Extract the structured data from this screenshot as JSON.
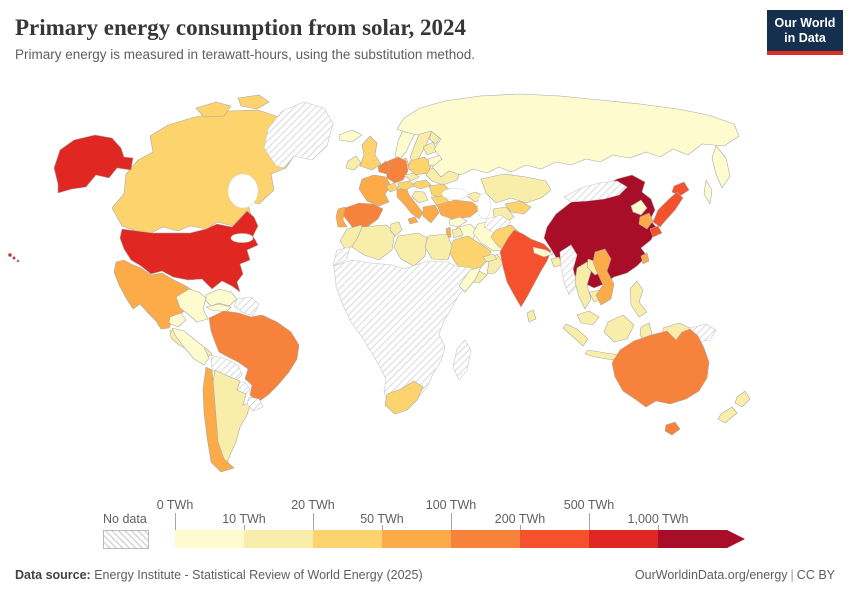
{
  "header": {
    "title": "Primary energy consumption from solar, 2024",
    "subtitle": "Primary energy is measured in terawatt-hours, using the substitution method."
  },
  "logo": {
    "line1": "Our World",
    "line2": "in Data",
    "bg_color": "#15304f",
    "accent_color": "#dc2e22"
  },
  "legend": {
    "no_data_label": "No data",
    "ticks": [
      {
        "label": "0 TWh",
        "row": "top"
      },
      {
        "label": "10 TWh",
        "row": "bottom"
      },
      {
        "label": "20 TWh",
        "row": "top"
      },
      {
        "label": "50 TWh",
        "row": "bottom"
      },
      {
        "label": "100 TWh",
        "row": "top"
      },
      {
        "label": "200 TWh",
        "row": "bottom"
      },
      {
        "label": "500 TWh",
        "row": "top"
      },
      {
        "label": "1,000 TWh",
        "row": "bottom"
      }
    ]
  },
  "footer": {
    "source_label": "Data source:",
    "source_text": "Energy Institute - Statistical Review of World Energy (2025)",
    "link": "OurWorldinData.org/energy",
    "separator": "|",
    "license": "CC BY"
  },
  "chart_data": {
    "type": "heatmap",
    "subtype": "choropleth-world-map",
    "title": "Primary energy consumption from solar, 2024",
    "unit": "TWh",
    "legend_position": "bottom",
    "bins": [
      {
        "label": "0–10 TWh",
        "color": "#fefbce"
      },
      {
        "label": "10–20 TWh",
        "color": "#f9edaa"
      },
      {
        "label": "20–50 TWh",
        "color": "#fcd36d"
      },
      {
        "label": "50–100 TWh",
        "color": "#fcab48"
      },
      {
        "label": "100–200 TWh",
        "color": "#f7823b"
      },
      {
        "label": "200–500 TWh",
        "color": "#f4512c"
      },
      {
        "label": "500–1,000 TWh",
        "color": "#e02721"
      },
      {
        "label": "1,000+ TWh",
        "color": "#a80e27"
      }
    ],
    "no_data_color": "hatched",
    "countries": {
      "China": "1,000+ TWh",
      "United States": "500–1,000 TWh",
      "India": "200–500 TWh",
      "Japan": "200–500 TWh",
      "Brazil": "100–200 TWh",
      "Australia": "100–200 TWh",
      "Germany": "100–200 TWh",
      "Spain": "100–200 TWh",
      "Netherlands": "100–200 TWh",
      "France": "50–100 TWh",
      "Italy": "50–100 TWh",
      "Turkey": "50–100 TWh",
      "Greece": "50–100 TWh",
      "Mexico": "50–100 TWh",
      "Chile": "50–100 TWh",
      "South Korea": "50–100 TWh",
      "Vietnam": "50–100 TWh",
      "Taiwan": "50–100 TWh",
      "Portugal": "50–100 TWh",
      "Israel": "50–100 TWh",
      "United Kingdom": "20–50 TWh",
      "Canada": "20–50 TWh",
      "Poland": "20–50 TWh",
      "Saudi Arabia": "20–50 TWh",
      "South Africa": "20–50 TWh",
      "Pakistan": "20–50 TWh",
      "Uzbekistan": "20–50 TWh",
      "Austria": "20–50 TWh",
      "Switzerland": "20–50 TWh",
      "Denmark": "20–50 TWh",
      "Hungary": "20–50 TWh",
      "Romania": "20–50 TWh",
      "Bulgaria": "20–50 TWh",
      "Sweden": "10–20 TWh",
      "Finland": "10–20 TWh",
      "Ireland": "10–20 TWh",
      "Ukraine": "10–20 TWh",
      "Czechia": "10–20 TWh",
      "Baltic states": "10–20 TWh",
      "Kazakhstan": "10–20 TWh",
      "Turkmenistan": "10–20 TWh",
      "Azerbaijan": "10–20 TWh",
      "Balkans": "10–20 TWh",
      "Egypt": "10–20 TWh",
      "Algeria": "10–20 TWh",
      "Libya": "10–20 TWh",
      "Morocco": "10–20 TWh",
      "Tunisia": "10–20 TWh",
      "Jordan": "10–20 TWh",
      "Oman": "10–20 TWh",
      "United Arab Emirates": "10–20 TWh",
      "Yemen": "10–20 TWh",
      "Thailand": "10–20 TWh",
      "Bangladesh": "10–20 TWh",
      "Sri Lanka": "10–20 TWh",
      "Philippines": "10–20 TWh",
      "Indonesia": "10–20 TWh",
      "Malaysia": "10–20 TWh",
      "Cambodia": "10–20 TWh",
      "Laos": "10–20 TWh",
      "Argentina": "10–20 TWh",
      "Central America": "10–20 TWh",
      "New Zealand": "10–20 TWh",
      "Russia": "0–10 TWh",
      "Norway": "0–10 TWh",
      "Iceland": "0–10 TWh",
      "Belarus": "0–10 TWh",
      "Iran": "0–10 TWh",
      "Iraq": "0–10 TWh",
      "Syria": "0–10 TWh",
      "Colombia": "0–10 TWh",
      "Venezuela": "0–10 TWh",
      "Peru": "0–10 TWh",
      "Ecuador": "0–10 TWh",
      "Cuba": "0–10 TWh",
      "Somalia": "0–10 TWh",
      "North Korea": "0–10 TWh",
      "Nepal": "0–10 TWh",
      "Greenland": "No data",
      "Mongolia": "No data",
      "Afghanistan": "No data",
      "Myanmar": "No data",
      "Papua New Guinea": "No data",
      "Bolivia": "No data",
      "Paraguay": "No data",
      "Uruguay": "No data",
      "Guyana and Suriname": "No data",
      "Western Sahara": "No data",
      "Sub-Saharan Africa": "No data",
      "Madagascar": "No data"
    }
  }
}
